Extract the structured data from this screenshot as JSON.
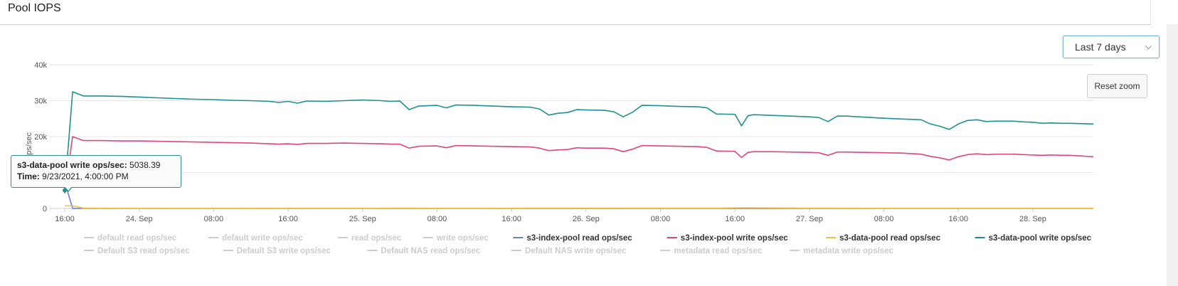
{
  "panel": {
    "title": "Pool IOPS"
  },
  "controls": {
    "range_label": "Last 7 days",
    "reset_zoom": "Reset zoom"
  },
  "tooltip": {
    "series": "s3-data-pool write ops/sec:",
    "value": "5038.39",
    "time_label": "Time:",
    "time_value": "9/23/2021, 4:00:00 PM"
  },
  "chart_data": {
    "type": "line",
    "ylabel": "ops/sec",
    "ylim": [
      0,
      40000
    ],
    "y_ticks": [
      "0",
      "10k",
      "20k",
      "30k",
      "40k"
    ],
    "x_ticks": [
      "16:00",
      "24. Sep",
      "08:00",
      "16:00",
      "25. Sep",
      "08:00",
      "16:00",
      "26. Sep",
      "08:00",
      "16:00",
      "27. Sep",
      "08:00",
      "16:00",
      "28. Sep"
    ],
    "x_tick_hours": [
      0,
      8,
      16,
      24,
      32,
      40,
      48,
      56,
      64,
      72,
      80,
      88,
      96,
      104
    ],
    "xlim_hours": [
      0,
      110.5
    ],
    "grid": "horizontal",
    "legend_position": "bottom",
    "legend": [
      {
        "label": "default read ops/sec",
        "visible": false
      },
      {
        "label": "default write ops/sec",
        "visible": false
      },
      {
        "label": "read ops/sec",
        "visible": false
      },
      {
        "label": "write ops/sec",
        "visible": false
      },
      {
        "label": "s3-index-pool read ops/sec",
        "visible": true,
        "color": "#6a7fd6"
      },
      {
        "label": "s3-index-pool write ops/sec",
        "visible": true,
        "color": "#e0457b"
      },
      {
        "label": "s3-data-pool read ops/sec",
        "visible": true,
        "color": "#e8c547"
      },
      {
        "label": "s3-data-pool write ops/sec",
        "visible": true,
        "color": "#1f9090"
      },
      {
        "label": "Default S3 read ops/sec",
        "visible": false
      },
      {
        "label": "Default S3 write ops/sec",
        "visible": false
      },
      {
        "label": "Default NAS read ops/sec",
        "visible": false
      },
      {
        "label": "Default NAS write ops/sec",
        "visible": false
      },
      {
        "label": "metadata read ops/sec",
        "visible": false
      },
      {
        "label": "metadata write ops/sec",
        "visible": false
      }
    ],
    "series": [
      {
        "name": "s3-data-pool write ops/sec",
        "color": "#1f9090",
        "points": [
          [
            0,
            5038
          ],
          [
            0.85,
            32500
          ],
          [
            2,
            31300
          ],
          [
            4,
            31300
          ],
          [
            6,
            31200
          ],
          [
            8,
            31000
          ],
          [
            10,
            30800
          ],
          [
            12,
            30600
          ],
          [
            14,
            30400
          ],
          [
            16,
            30300
          ],
          [
            18,
            30100
          ],
          [
            20,
            30000
          ],
          [
            22,
            29800
          ],
          [
            23,
            29500
          ],
          [
            24,
            29800
          ],
          [
            25,
            29300
          ],
          [
            26,
            29900
          ],
          [
            28,
            29800
          ],
          [
            30,
            30000
          ],
          [
            32,
            30200
          ],
          [
            34,
            30000
          ],
          [
            35,
            29800
          ],
          [
            36,
            29900
          ],
          [
            37,
            27500
          ],
          [
            38,
            28500
          ],
          [
            40,
            28700
          ],
          [
            41,
            28000
          ],
          [
            42,
            28800
          ],
          [
            44,
            28700
          ],
          [
            46,
            28500
          ],
          [
            48,
            28300
          ],
          [
            50,
            28200
          ],
          [
            51,
            27700
          ],
          [
            52,
            26000
          ],
          [
            53,
            26500
          ],
          [
            54,
            26700
          ],
          [
            55,
            27500
          ],
          [
            56,
            27400
          ],
          [
            58,
            27300
          ],
          [
            59,
            26900
          ],
          [
            60,
            25500
          ],
          [
            61,
            26800
          ],
          [
            62,
            28700
          ],
          [
            64,
            28600
          ],
          [
            66,
            28400
          ],
          [
            68,
            28300
          ],
          [
            69,
            28000
          ],
          [
            70,
            26300
          ],
          [
            72,
            26200
          ],
          [
            72.7,
            23000
          ],
          [
            73.4,
            25800
          ],
          [
            74,
            26100
          ],
          [
            76,
            25900
          ],
          [
            78,
            25700
          ],
          [
            80,
            25500
          ],
          [
            81,
            25300
          ],
          [
            82,
            24200
          ],
          [
            83,
            25700
          ],
          [
            84,
            25700
          ],
          [
            86,
            25400
          ],
          [
            88,
            25100
          ],
          [
            90,
            24900
          ],
          [
            92,
            24700
          ],
          [
            93,
            23500
          ],
          [
            94,
            22900
          ],
          [
            95,
            22000
          ],
          [
            96,
            23500
          ],
          [
            97,
            24500
          ],
          [
            98,
            24700
          ],
          [
            99,
            24200
          ],
          [
            100,
            24300
          ],
          [
            102,
            24300
          ],
          [
            103,
            24100
          ],
          [
            104,
            24000
          ],
          [
            105,
            23700
          ],
          [
            106,
            23800
          ],
          [
            107,
            23700
          ],
          [
            108,
            23700
          ],
          [
            110.5,
            23500
          ]
        ]
      },
      {
        "name": "s3-index-pool write ops/sec",
        "color": "#e0457b",
        "points": [
          [
            0,
            4200
          ],
          [
            0.85,
            20000
          ],
          [
            2,
            18900
          ],
          [
            4,
            18900
          ],
          [
            6,
            18800
          ],
          [
            8,
            18800
          ],
          [
            10,
            18700
          ],
          [
            12,
            18600
          ],
          [
            14,
            18500
          ],
          [
            16,
            18400
          ],
          [
            18,
            18300
          ],
          [
            20,
            18200
          ],
          [
            22,
            18000
          ],
          [
            23,
            17900
          ],
          [
            24,
            18000
          ],
          [
            25,
            17800
          ],
          [
            26,
            18100
          ],
          [
            28,
            18100
          ],
          [
            30,
            18200
          ],
          [
            32,
            18100
          ],
          [
            34,
            18000
          ],
          [
            35,
            17900
          ],
          [
            36,
            17900
          ],
          [
            37,
            16800
          ],
          [
            38,
            17300
          ],
          [
            40,
            17400
          ],
          [
            41,
            16900
          ],
          [
            42,
            17500
          ],
          [
            44,
            17400
          ],
          [
            46,
            17300
          ],
          [
            48,
            17200
          ],
          [
            50,
            17100
          ],
          [
            51,
            16800
          ],
          [
            52,
            16100
          ],
          [
            53,
            16300
          ],
          [
            54,
            16400
          ],
          [
            55,
            16900
          ],
          [
            56,
            16800
          ],
          [
            58,
            16800
          ],
          [
            59,
            16600
          ],
          [
            60,
            15800
          ],
          [
            61,
            16500
          ],
          [
            62,
            17500
          ],
          [
            64,
            17400
          ],
          [
            66,
            17300
          ],
          [
            68,
            17200
          ],
          [
            69,
            17000
          ],
          [
            70,
            16000
          ],
          [
            72,
            15900
          ],
          [
            72.7,
            14200
          ],
          [
            73.4,
            15600
          ],
          [
            74,
            15800
          ],
          [
            76,
            15800
          ],
          [
            78,
            15700
          ],
          [
            80,
            15600
          ],
          [
            81,
            15500
          ],
          [
            82,
            14800
          ],
          [
            83,
            15700
          ],
          [
            84,
            15700
          ],
          [
            86,
            15600
          ],
          [
            88,
            15500
          ],
          [
            90,
            15400
          ],
          [
            92,
            15100
          ],
          [
            93,
            14500
          ],
          [
            94,
            14100
          ],
          [
            95,
            13500
          ],
          [
            96,
            14400
          ],
          [
            97,
            15000
          ],
          [
            98,
            15200
          ],
          [
            99,
            15000
          ],
          [
            100,
            15100
          ],
          [
            102,
            15100
          ],
          [
            103,
            15000
          ],
          [
            104,
            14900
          ],
          [
            105,
            14800
          ],
          [
            106,
            14900
          ],
          [
            107,
            14800
          ],
          [
            108,
            14800
          ],
          [
            110.5,
            14400
          ]
        ]
      },
      {
        "name": "s3-data-pool read ops/sec",
        "color": "#e8c547",
        "points": [
          [
            0,
            800
          ],
          [
            1,
            700
          ],
          [
            2,
            100
          ],
          [
            6,
            60
          ],
          [
            16,
            40
          ],
          [
            30,
            60
          ],
          [
            36,
            80
          ],
          [
            44,
            60
          ],
          [
            58,
            100
          ],
          [
            70,
            80
          ],
          [
            73,
            200
          ],
          [
            80,
            80
          ],
          [
            96,
            60
          ],
          [
            110.5,
            50
          ]
        ]
      },
      {
        "name": "s3-index-pool read ops/sec",
        "color": "#6a7fd6",
        "points": [
          [
            0,
            6000
          ],
          [
            0.3,
            4800
          ],
          [
            0.85,
            10
          ],
          [
            4,
            0
          ],
          [
            110.5,
            0
          ]
        ]
      }
    ]
  }
}
